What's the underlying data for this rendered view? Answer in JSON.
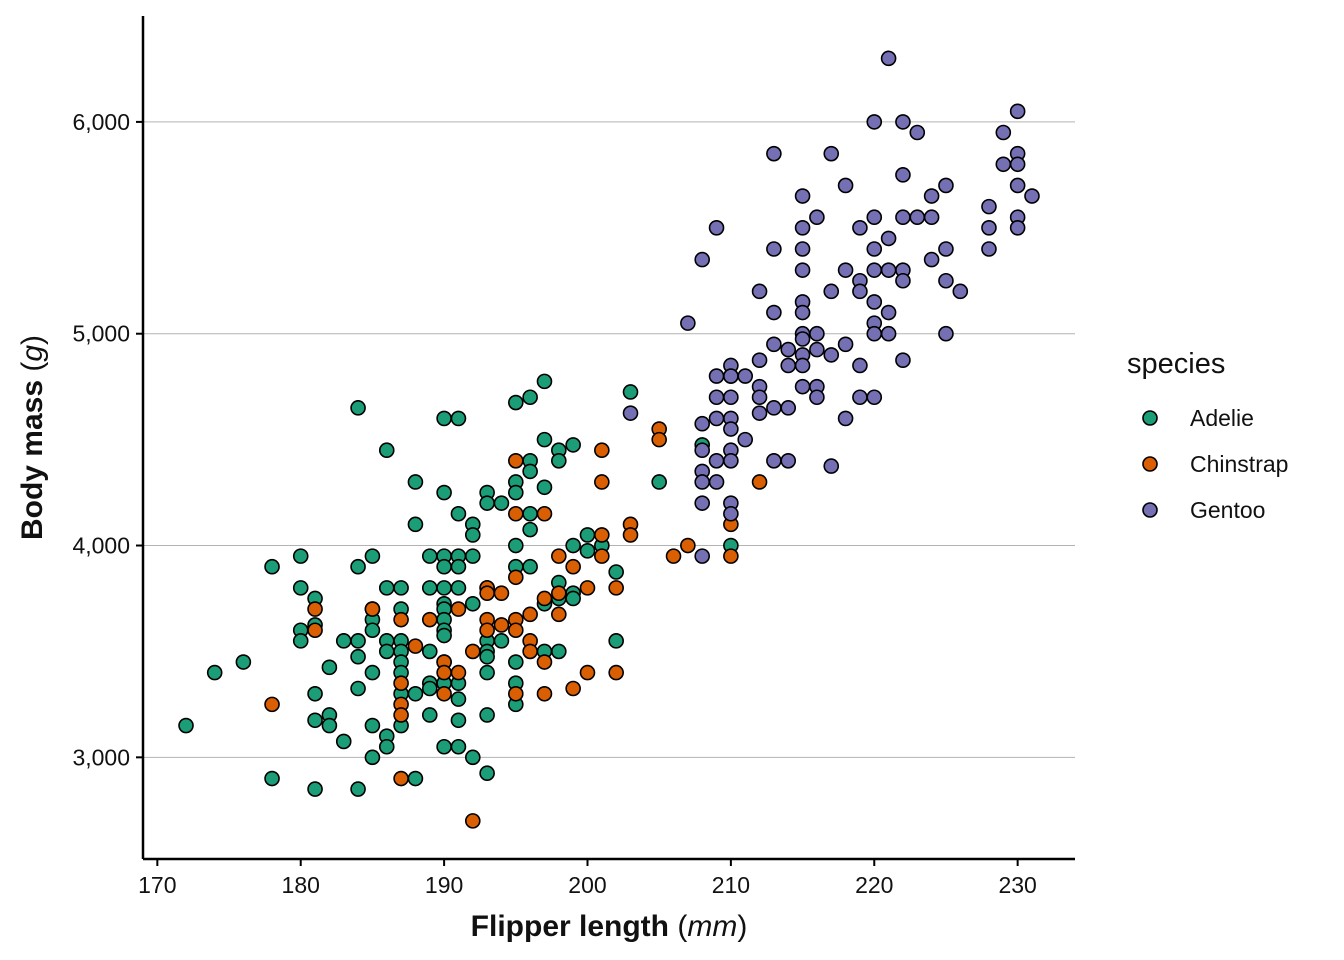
{
  "chart_data": {
    "type": "scatter",
    "title": "",
    "xlabel": {
      "main": "Flipper length",
      "open": " (",
      "unit": "mm",
      "close": ")"
    },
    "ylabel": {
      "main": "Body mass",
      "open": " (",
      "unit": "g",
      "close": ")"
    },
    "xlim": [
      169,
      234
    ],
    "ylim": [
      2520,
      6500
    ],
    "x_ticks": [
      170,
      180,
      190,
      200,
      210,
      220,
      230
    ],
    "y_ticks": [
      3000,
      4000,
      5000,
      6000
    ],
    "x_tick_labels": [
      "170",
      "180",
      "190",
      "200",
      "210",
      "220",
      "230"
    ],
    "y_tick_labels": [
      "3,000",
      "4,000",
      "5,000",
      "6,000"
    ],
    "grid": {
      "horizontal_major": true,
      "vertical": false
    },
    "legend": {
      "title": "species",
      "placement": "right"
    },
    "series": [
      {
        "name": "Adelie",
        "color": "#1b9e77",
        "points": [
          [
            172,
            3150
          ],
          [
            174,
            3400
          ],
          [
            176,
            3450
          ],
          [
            178,
            3900
          ],
          [
            178,
            2900
          ],
          [
            180,
            3950
          ],
          [
            180,
            3800
          ],
          [
            180,
            3600
          ],
          [
            180,
            3550
          ],
          [
            181,
            3750
          ],
          [
            181,
            3625
          ],
          [
            181,
            3300
          ],
          [
            181,
            3175
          ],
          [
            181,
            2850
          ],
          [
            182,
            3200
          ],
          [
            182,
            3150
          ],
          [
            182,
            3425
          ],
          [
            183,
            3550
          ],
          [
            183,
            3075
          ],
          [
            184,
            4650
          ],
          [
            184,
            3900
          ],
          [
            184,
            3550
          ],
          [
            184,
            3475
          ],
          [
            184,
            3325
          ],
          [
            184,
            2850
          ],
          [
            185,
            3950
          ],
          [
            185,
            3700
          ],
          [
            185,
            3650
          ],
          [
            185,
            3600
          ],
          [
            185,
            3400
          ],
          [
            185,
            3150
          ],
          [
            185,
            3000
          ],
          [
            186,
            4450
          ],
          [
            186,
            3800
          ],
          [
            186,
            3550
          ],
          [
            186,
            3500
          ],
          [
            186,
            3100
          ],
          [
            186,
            3050
          ],
          [
            187,
            3800
          ],
          [
            187,
            3700
          ],
          [
            187,
            3550
          ],
          [
            187,
            3500
          ],
          [
            187,
            3450
          ],
          [
            187,
            3400
          ],
          [
            187,
            3300
          ],
          [
            187,
            3150
          ],
          [
            188,
            4300
          ],
          [
            188,
            4100
          ],
          [
            188,
            3300
          ],
          [
            188,
            2900
          ],
          [
            189,
            3950
          ],
          [
            189,
            3800
          ],
          [
            189,
            3500
          ],
          [
            189,
            3350
          ],
          [
            189,
            3325
          ],
          [
            189,
            3200
          ],
          [
            190,
            4600
          ],
          [
            190,
            4250
          ],
          [
            190,
            3950
          ],
          [
            190,
            3900
          ],
          [
            190,
            3800
          ],
          [
            190,
            3725
          ],
          [
            190,
            3700
          ],
          [
            190,
            3650
          ],
          [
            190,
            3600
          ],
          [
            190,
            3575
          ],
          [
            190,
            3450
          ],
          [
            190,
            3350
          ],
          [
            190,
            3050
          ],
          [
            191,
            4600
          ],
          [
            191,
            4150
          ],
          [
            191,
            3950
          ],
          [
            191,
            3900
          ],
          [
            191,
            3800
          ],
          [
            191,
            3350
          ],
          [
            191,
            3275
          ],
          [
            191,
            3175
          ],
          [
            191,
            3050
          ],
          [
            192,
            4100
          ],
          [
            192,
            4050
          ],
          [
            192,
            3950
          ],
          [
            192,
            3725
          ],
          [
            192,
            3000
          ],
          [
            193,
            4250
          ],
          [
            193,
            4200
          ],
          [
            193,
            3800
          ],
          [
            193,
            3550
          ],
          [
            193,
            3500
          ],
          [
            193,
            3475
          ],
          [
            193,
            3400
          ],
          [
            193,
            3200
          ],
          [
            193,
            2925
          ],
          [
            194,
            4200
          ],
          [
            194,
            3550
          ],
          [
            195,
            4675
          ],
          [
            195,
            4300
          ],
          [
            195,
            4250
          ],
          [
            195,
            4000
          ],
          [
            195,
            3900
          ],
          [
            195,
            3450
          ],
          [
            195,
            3350
          ],
          [
            195,
            3250
          ],
          [
            196,
            4700
          ],
          [
            196,
            4400
          ],
          [
            196,
            4350
          ],
          [
            196,
            4150
          ],
          [
            196,
            4075
          ],
          [
            196,
            3900
          ],
          [
            197,
            4775
          ],
          [
            197,
            4500
          ],
          [
            197,
            4275
          ],
          [
            197,
            3725
          ],
          [
            197,
            3500
          ],
          [
            198,
            4450
          ],
          [
            198,
            4400
          ],
          [
            198,
            3825
          ],
          [
            198,
            3750
          ],
          [
            198,
            3500
          ],
          [
            199,
            4475
          ],
          [
            199,
            4000
          ],
          [
            199,
            3775
          ],
          [
            199,
            3750
          ],
          [
            200,
            4050
          ],
          [
            200,
            3975
          ],
          [
            201,
            4000
          ],
          [
            202,
            3875
          ],
          [
            202,
            3550
          ],
          [
            203,
            4725
          ],
          [
            205,
            4300
          ],
          [
            208,
            4475
          ],
          [
            210,
            4000
          ]
        ]
      },
      {
        "name": "Chinstrap",
        "color": "#d95f02",
        "points": [
          [
            178,
            3250
          ],
          [
            181,
            3700
          ],
          [
            181,
            3600
          ],
          [
            185,
            3700
          ],
          [
            187,
            3650
          ],
          [
            187,
            3350
          ],
          [
            187,
            3250
          ],
          [
            187,
            3200
          ],
          [
            187,
            2900
          ],
          [
            188,
            3525
          ],
          [
            189,
            3650
          ],
          [
            190,
            3450
          ],
          [
            190,
            3400
          ],
          [
            190,
            3300
          ],
          [
            191,
            3700
          ],
          [
            191,
            3400
          ],
          [
            192,
            3500
          ],
          [
            192,
            2700
          ],
          [
            193,
            3800
          ],
          [
            193,
            3775
          ],
          [
            193,
            3650
          ],
          [
            193,
            3600
          ],
          [
            194,
            3775
          ],
          [
            194,
            3625
          ],
          [
            195,
            4400
          ],
          [
            195,
            4150
          ],
          [
            195,
            3850
          ],
          [
            195,
            3650
          ],
          [
            195,
            3600
          ],
          [
            195,
            3300
          ],
          [
            196,
            3675
          ],
          [
            196,
            3550
          ],
          [
            196,
            3500
          ],
          [
            197,
            4150
          ],
          [
            197,
            3750
          ],
          [
            197,
            3450
          ],
          [
            197,
            3300
          ],
          [
            198,
            3950
          ],
          [
            198,
            3775
          ],
          [
            198,
            3675
          ],
          [
            199,
            3900
          ],
          [
            199,
            3325
          ],
          [
            200,
            3800
          ],
          [
            200,
            3400
          ],
          [
            201,
            4450
          ],
          [
            201,
            4300
          ],
          [
            201,
            4050
          ],
          [
            201,
            3950
          ],
          [
            202,
            3800
          ],
          [
            202,
            3400
          ],
          [
            203,
            4100
          ],
          [
            203,
            4050
          ],
          [
            205,
            4550
          ],
          [
            205,
            4500
          ],
          [
            206,
            3950
          ],
          [
            207,
            4000
          ],
          [
            210,
            4800
          ],
          [
            210,
            4100
          ],
          [
            210,
            3950
          ],
          [
            212,
            4300
          ]
        ]
      },
      {
        "name": "Gentoo",
        "color": "#7570b3",
        "points": [
          [
            203,
            4625
          ],
          [
            207,
            5050
          ],
          [
            208,
            5350
          ],
          [
            208,
            4575
          ],
          [
            208,
            4450
          ],
          [
            208,
            4350
          ],
          [
            208,
            4300
          ],
          [
            208,
            4200
          ],
          [
            208,
            3950
          ],
          [
            209,
            5500
          ],
          [
            209,
            4800
          ],
          [
            209,
            4700
          ],
          [
            209,
            4600
          ],
          [
            209,
            4400
          ],
          [
            209,
            4300
          ],
          [
            210,
            4850
          ],
          [
            210,
            4800
          ],
          [
            210,
            4700
          ],
          [
            210,
            4600
          ],
          [
            210,
            4550
          ],
          [
            210,
            4450
          ],
          [
            210,
            4400
          ],
          [
            210,
            4200
          ],
          [
            210,
            4150
          ],
          [
            211,
            4800
          ],
          [
            211,
            4500
          ],
          [
            212,
            5200
          ],
          [
            212,
            4875
          ],
          [
            212,
            4750
          ],
          [
            212,
            4700
          ],
          [
            212,
            4625
          ],
          [
            213,
            5850
          ],
          [
            213,
            5400
          ],
          [
            213,
            5100
          ],
          [
            213,
            4950
          ],
          [
            213,
            4650
          ],
          [
            213,
            4400
          ],
          [
            214,
            4925
          ],
          [
            214,
            4850
          ],
          [
            214,
            4650
          ],
          [
            214,
            4400
          ],
          [
            215,
            5650
          ],
          [
            215,
            5500
          ],
          [
            215,
            5400
          ],
          [
            215,
            5300
          ],
          [
            215,
            5150
          ],
          [
            215,
            5100
          ],
          [
            215,
            5000
          ],
          [
            215,
            4975
          ],
          [
            215,
            4900
          ],
          [
            215,
            4850
          ],
          [
            215,
            4750
          ],
          [
            216,
            5550
          ],
          [
            216,
            5000
          ],
          [
            216,
            4925
          ],
          [
            216,
            4750
          ],
          [
            216,
            4700
          ],
          [
            217,
            5850
          ],
          [
            217,
            5200
          ],
          [
            217,
            4900
          ],
          [
            217,
            4375
          ],
          [
            218,
            5700
          ],
          [
            218,
            5300
          ],
          [
            218,
            4950
          ],
          [
            218,
            4600
          ],
          [
            219,
            5500
          ],
          [
            219,
            5250
          ],
          [
            219,
            5200
          ],
          [
            219,
            4850
          ],
          [
            219,
            4700
          ],
          [
            220,
            6000
          ],
          [
            220,
            5550
          ],
          [
            220,
            5400
          ],
          [
            220,
            5300
          ],
          [
            220,
            5150
          ],
          [
            220,
            5050
          ],
          [
            220,
            5000
          ],
          [
            220,
            4700
          ],
          [
            221,
            6300
          ],
          [
            221,
            5450
          ],
          [
            221,
            5300
          ],
          [
            221,
            5100
          ],
          [
            221,
            5000
          ],
          [
            222,
            6000
          ],
          [
            222,
            5750
          ],
          [
            222,
            5550
          ],
          [
            222,
            5300
          ],
          [
            222,
            5250
          ],
          [
            222,
            4875
          ],
          [
            223,
            5950
          ],
          [
            223,
            5550
          ],
          [
            224,
            5650
          ],
          [
            224,
            5550
          ],
          [
            224,
            5350
          ],
          [
            225,
            5700
          ],
          [
            225,
            5400
          ],
          [
            225,
            5250
          ],
          [
            225,
            5000
          ],
          [
            226,
            5200
          ],
          [
            228,
            5600
          ],
          [
            228,
            5500
          ],
          [
            228,
            5400
          ],
          [
            229,
            5950
          ],
          [
            229,
            5800
          ],
          [
            230,
            6050
          ],
          [
            230,
            5850
          ],
          [
            230,
            5800
          ],
          [
            230,
            5700
          ],
          [
            230,
            5550
          ],
          [
            230,
            5500
          ],
          [
            231,
            5650
          ]
        ]
      }
    ]
  }
}
